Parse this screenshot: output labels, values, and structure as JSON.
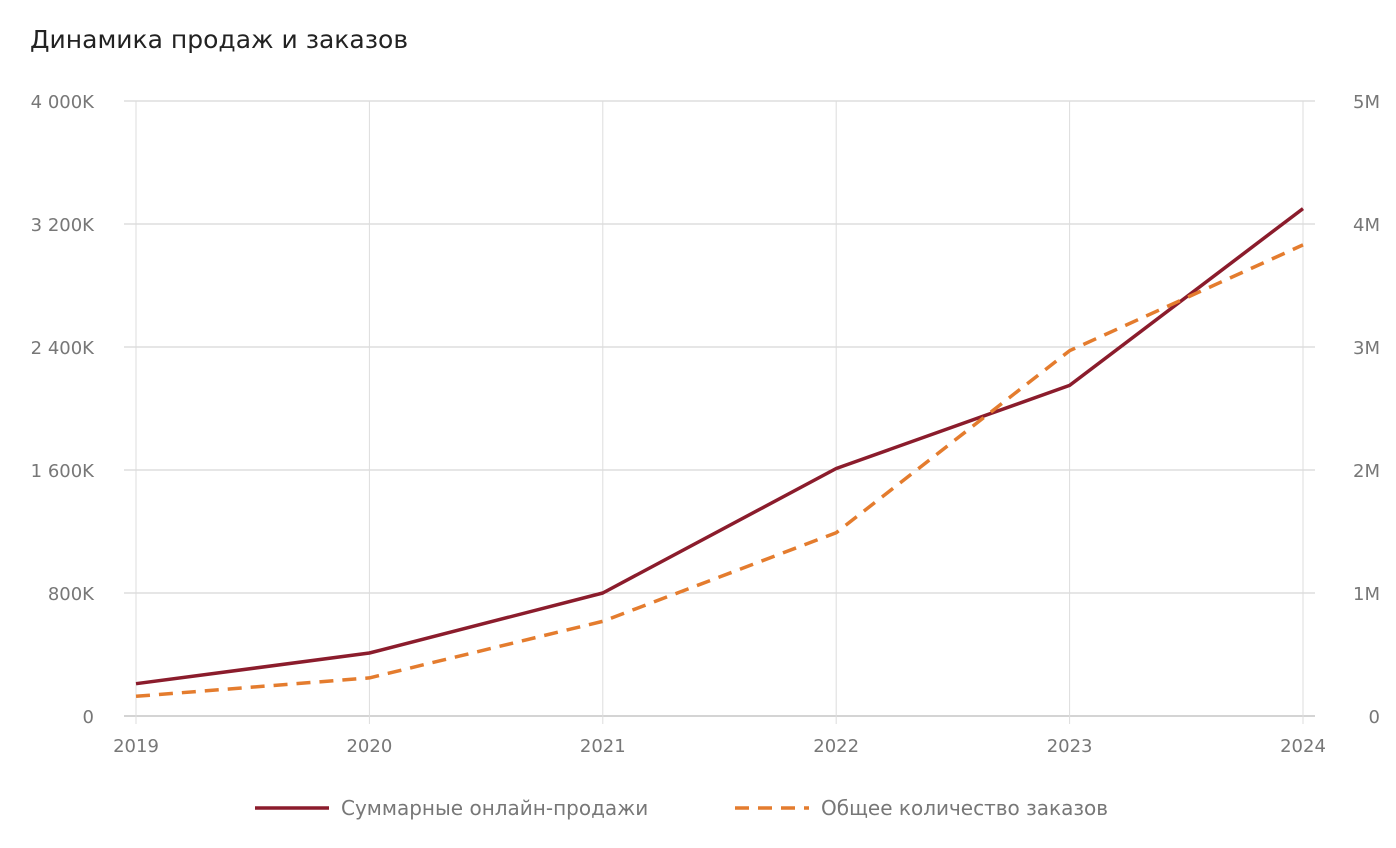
{
  "chart_data": {
    "type": "line",
    "title": "Динамика продаж и заказов",
    "x": [
      "2019",
      "2020",
      "2021",
      "2022",
      "2023",
      "2024"
    ],
    "y_left": {
      "ticks": [
        "0",
        "800K",
        "1 600K",
        "2 400K",
        "3 200K",
        "4 000K"
      ],
      "range": [
        0,
        4000
      ]
    },
    "y_right": {
      "ticks": [
        "0",
        "1M",
        "2M",
        "3M",
        "4M",
        "5M"
      ],
      "range": [
        0,
        5
      ]
    },
    "grid": true,
    "legend_position": "bottom",
    "series": [
      {
        "name": "Суммарные онлайн-продажи",
        "axis": "left",
        "unit": "K",
        "values": [
          210,
          410,
          800,
          1610,
          2150,
          3300
        ],
        "color": "#8b1c2c",
        "style": "solid"
      },
      {
        "name": "Общее количество заказов",
        "axis": "right",
        "unit": "M",
        "values": [
          0.16,
          0.31,
          0.77,
          1.49,
          2.97,
          3.83
        ],
        "color": "#e47c2e",
        "style": "dashed"
      }
    ]
  }
}
